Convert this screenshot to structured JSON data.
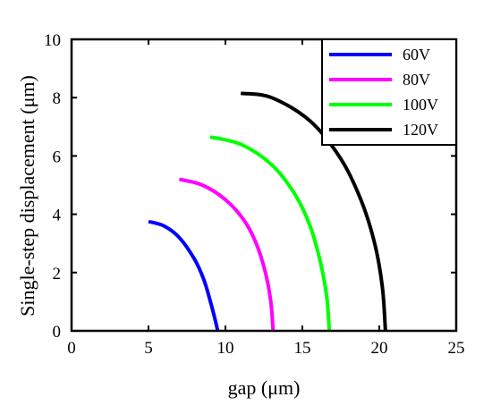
{
  "chart_data": {
    "type": "line",
    "xlabel": "gap (μm)",
    "ylabel": "Single-step displacement (μm)",
    "xlim": [
      0,
      25
    ],
    "ylim": [
      0,
      10
    ],
    "xticks": [
      "0",
      "5",
      "10",
      "15",
      "20",
      "25"
    ],
    "yticks": [
      "0",
      "2",
      "4",
      "6",
      "8",
      "10"
    ],
    "grid": false,
    "legend_position": "top-right",
    "series": [
      {
        "name": "60V",
        "color": "#0000ff",
        "x": [
          5.0,
          6.0,
          7.0,
          8.0,
          8.6,
          9.0,
          9.3,
          9.5
        ],
        "y": [
          3.75,
          3.6,
          3.2,
          2.45,
          1.75,
          1.05,
          0.45,
          0.0
        ]
      },
      {
        "name": "80V",
        "color": "#ff00ff",
        "x": [
          7.0,
          8.5,
          10.0,
          11.2,
          12.0,
          12.6,
          12.95,
          13.1
        ],
        "y": [
          5.2,
          5.0,
          4.5,
          3.8,
          3.0,
          2.0,
          1.0,
          0.0
        ]
      },
      {
        "name": "100V",
        "color": "#00ff00",
        "x": [
          9.0,
          11.0,
          13.0,
          14.5,
          15.5,
          16.2,
          16.6,
          16.75
        ],
        "y": [
          6.65,
          6.4,
          5.7,
          4.7,
          3.6,
          2.3,
          1.1,
          0.0
        ]
      },
      {
        "name": "120V",
        "color": "#000000",
        "x": [
          11.0,
          13.0,
          15.5,
          17.5,
          18.8,
          19.7,
          20.2,
          20.4
        ],
        "y": [
          8.15,
          8.0,
          7.2,
          5.9,
          4.5,
          3.0,
          1.5,
          0.0
        ]
      }
    ]
  }
}
